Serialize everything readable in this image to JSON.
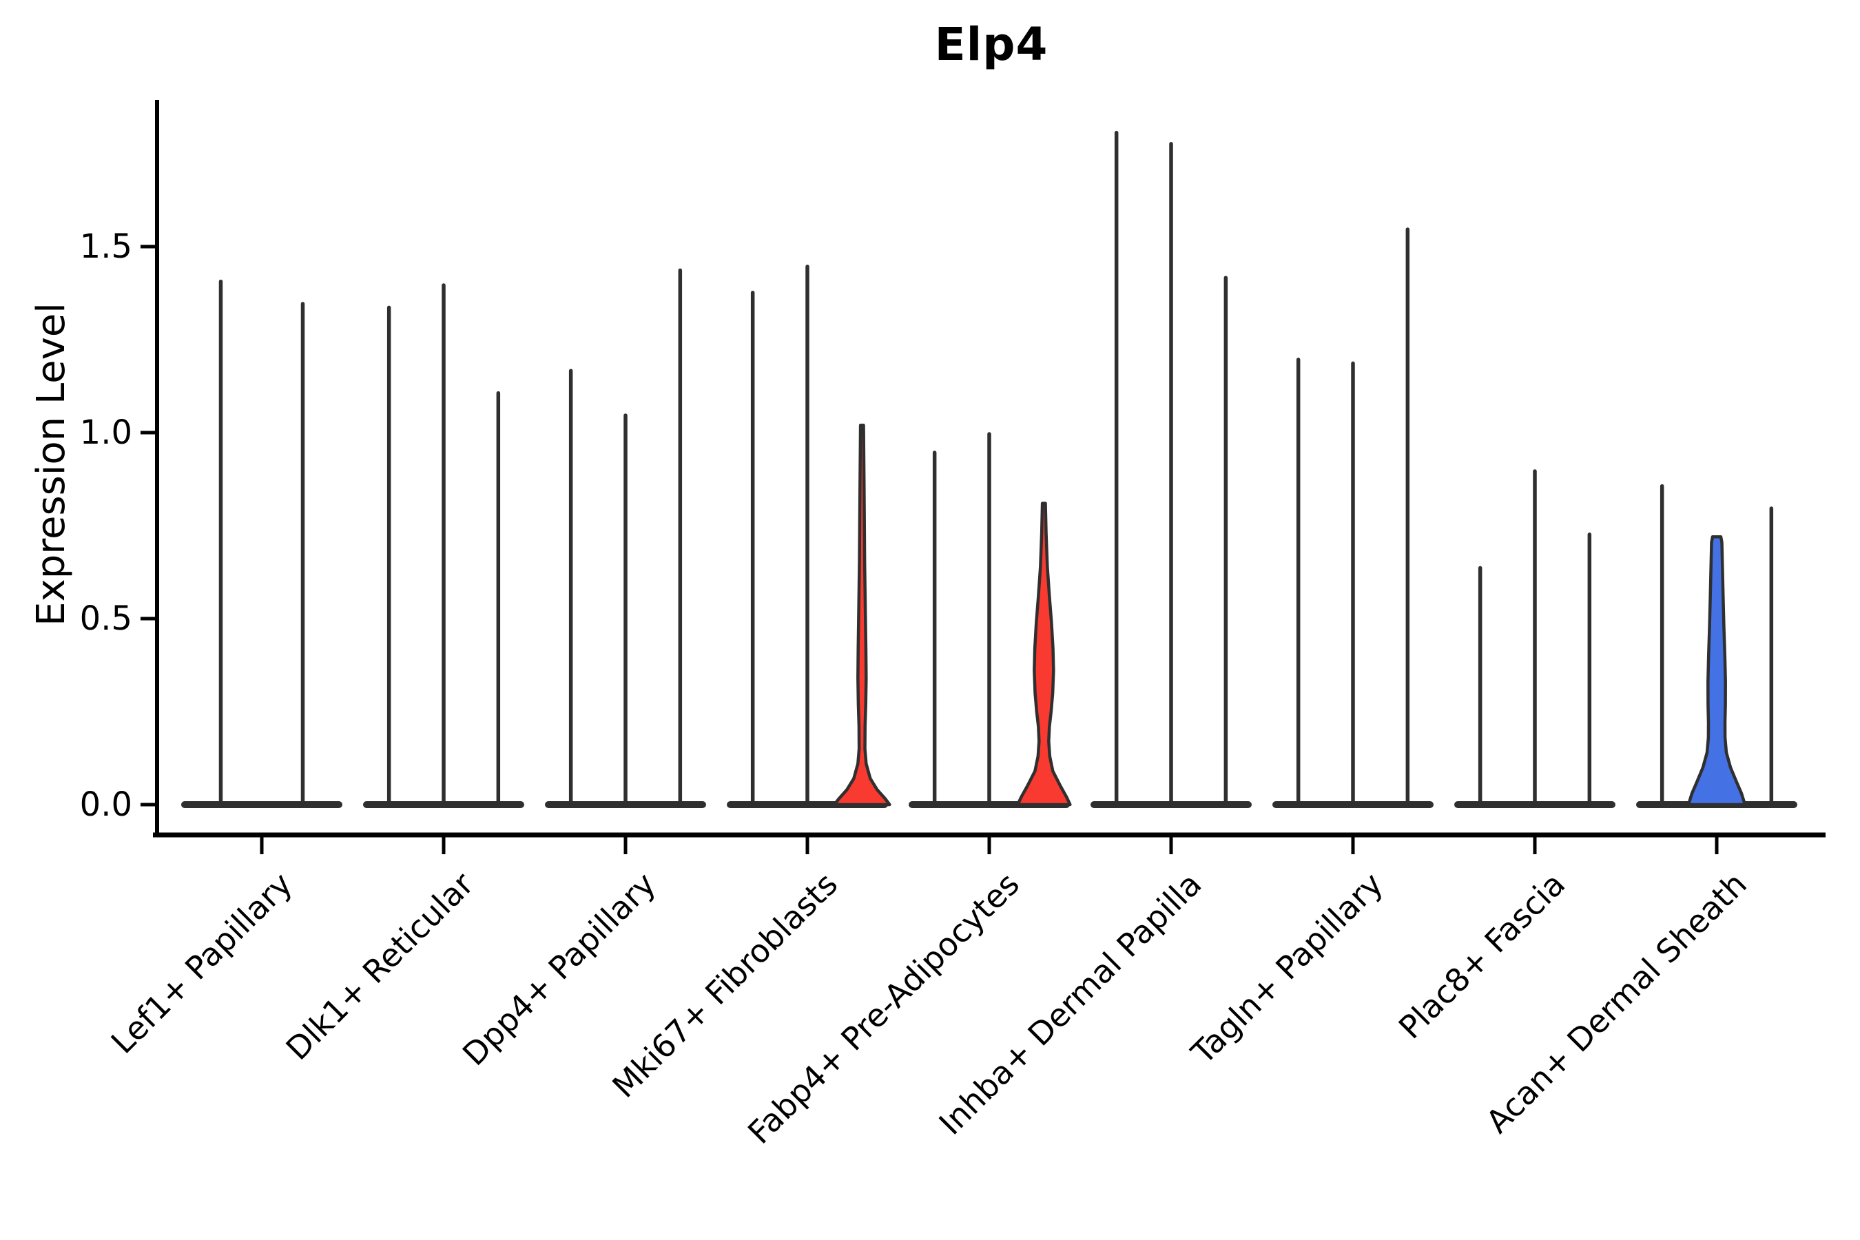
{
  "chart_data": {
    "type": "violin",
    "title": "Elp4",
    "ylabel": "Expression Level",
    "xlabel": "",
    "grid": false,
    "legend": "none",
    "ylim": [
      -0.08,
      1.9
    ],
    "yticks": [
      {
        "label": "0.0",
        "value": 0.0
      },
      {
        "label": "0.5",
        "value": 0.5
      },
      {
        "label": "1.0",
        "value": 1.0
      },
      {
        "label": "1.5",
        "value": 1.5
      }
    ],
    "categories": [
      "Lef1+ Papillary",
      "Dlk1+ Reticular",
      "Dpp4+ Papillary",
      "Mki67+ Fibroblasts",
      "Fabp4+ Pre-Adipocytes",
      "Inhba+ Dermal Papilla",
      "Tagln+ Papillary",
      "Plac8+ Fascia",
      "Acan+ Dermal Sheath"
    ],
    "colors": {
      "violin_line": "#2f2f2f",
      "axis": "#000000",
      "highlight_red": "#F93A31",
      "highlight_blue": "#4472E4"
    },
    "groups": [
      {
        "label": "Lef1+ Papillary",
        "violins": [
          {
            "kind": "spike",
            "max": 1.41
          },
          {
            "kind": "spike",
            "max": 1.35
          }
        ]
      },
      {
        "label": "Dlk1+ Reticular",
        "violins": [
          {
            "kind": "spike",
            "max": 1.34
          },
          {
            "kind": "spike",
            "max": 1.4
          },
          {
            "kind": "spike",
            "max": 1.11
          }
        ]
      },
      {
        "label": "Dpp4+ Papillary",
        "violins": [
          {
            "kind": "spike",
            "max": 1.17
          },
          {
            "kind": "spike",
            "max": 1.05
          },
          {
            "kind": "spike",
            "max": 1.44
          }
        ]
      },
      {
        "label": "Mki67+ Fibroblasts",
        "violins": [
          {
            "kind": "spike",
            "max": 1.38
          },
          {
            "kind": "spike",
            "max": 1.45
          },
          {
            "kind": "violin",
            "max": 1.02,
            "fill": "#F93A31",
            "profile": [
              [
                1.02,
                2.2
              ],
              [
                0.85,
                3.0
              ],
              [
                0.65,
                3.8
              ],
              [
                0.52,
                4.8
              ],
              [
                0.42,
                5.6
              ],
              [
                0.34,
                6.0
              ],
              [
                0.27,
                5.4
              ],
              [
                0.21,
                4.4
              ],
              [
                0.15,
                4.2
              ],
              [
                0.11,
                6.0
              ],
              [
                0.07,
                12
              ],
              [
                0.04,
                22
              ],
              [
                0.015,
                34
              ],
              [
                0,
                40
              ]
            ]
          }
        ]
      },
      {
        "label": "Fabp4+ Pre-Adipocytes",
        "violins": [
          {
            "kind": "spike",
            "max": 0.95
          },
          {
            "kind": "spike",
            "max": 1.0
          },
          {
            "kind": "violin",
            "max": 0.81,
            "fill": "#F93A31",
            "profile": [
              [
                0.81,
                2.2
              ],
              [
                0.73,
                3.2
              ],
              [
                0.64,
                5.0
              ],
              [
                0.56,
                8.0
              ],
              [
                0.49,
                11.0
              ],
              [
                0.42,
                13.2
              ],
              [
                0.36,
                14.0
              ],
              [
                0.3,
                12.8
              ],
              [
                0.25,
                10.5
              ],
              [
                0.21,
                8.0
              ],
              [
                0.17,
                7.0
              ],
              [
                0.13,
                8.5
              ],
              [
                0.09,
                13
              ],
              [
                0.05,
                24
              ],
              [
                0.02,
                33
              ],
              [
                0,
                38
              ]
            ]
          }
        ]
      },
      {
        "label": "Inhba+ Dermal Papilla",
        "violins": [
          {
            "kind": "spike",
            "max": 1.81
          },
          {
            "kind": "spike",
            "max": 1.78
          },
          {
            "kind": "spike",
            "max": 1.42
          }
        ]
      },
      {
        "label": "Tagln+ Papillary",
        "violins": [
          {
            "kind": "spike",
            "max": 1.2
          },
          {
            "kind": "spike",
            "max": 1.19
          },
          {
            "kind": "spike",
            "max": 1.55
          }
        ]
      },
      {
        "label": "Plac8+ Fascia",
        "violins": [
          {
            "kind": "spike",
            "max": 0.64
          },
          {
            "kind": "spike",
            "max": 0.9
          },
          {
            "kind": "spike",
            "max": 0.73
          }
        ]
      },
      {
        "label": "Acan+ Dermal Sheath",
        "violins": [
          {
            "kind": "spike",
            "max": 0.86
          },
          {
            "kind": "violin",
            "max": 0.72,
            "fill": "#4472E4",
            "profile": [
              [
                0.72,
                6.0
              ],
              [
                0.705,
                7.5
              ],
              [
                0.64,
                8.3
              ],
              [
                0.56,
                9.3
              ],
              [
                0.48,
                10.4
              ],
              [
                0.4,
                11.8
              ],
              [
                0.33,
                12.7
              ],
              [
                0.27,
                12.6
              ],
              [
                0.22,
                12.0
              ],
              [
                0.18,
                12.1
              ],
              [
                0.14,
                14.0
              ],
              [
                0.1,
                20
              ],
              [
                0.06,
                29
              ],
              [
                0.03,
                36
              ],
              [
                0,
                41
              ]
            ]
          },
          {
            "kind": "spike",
            "max": 0.8
          }
        ]
      }
    ]
  }
}
